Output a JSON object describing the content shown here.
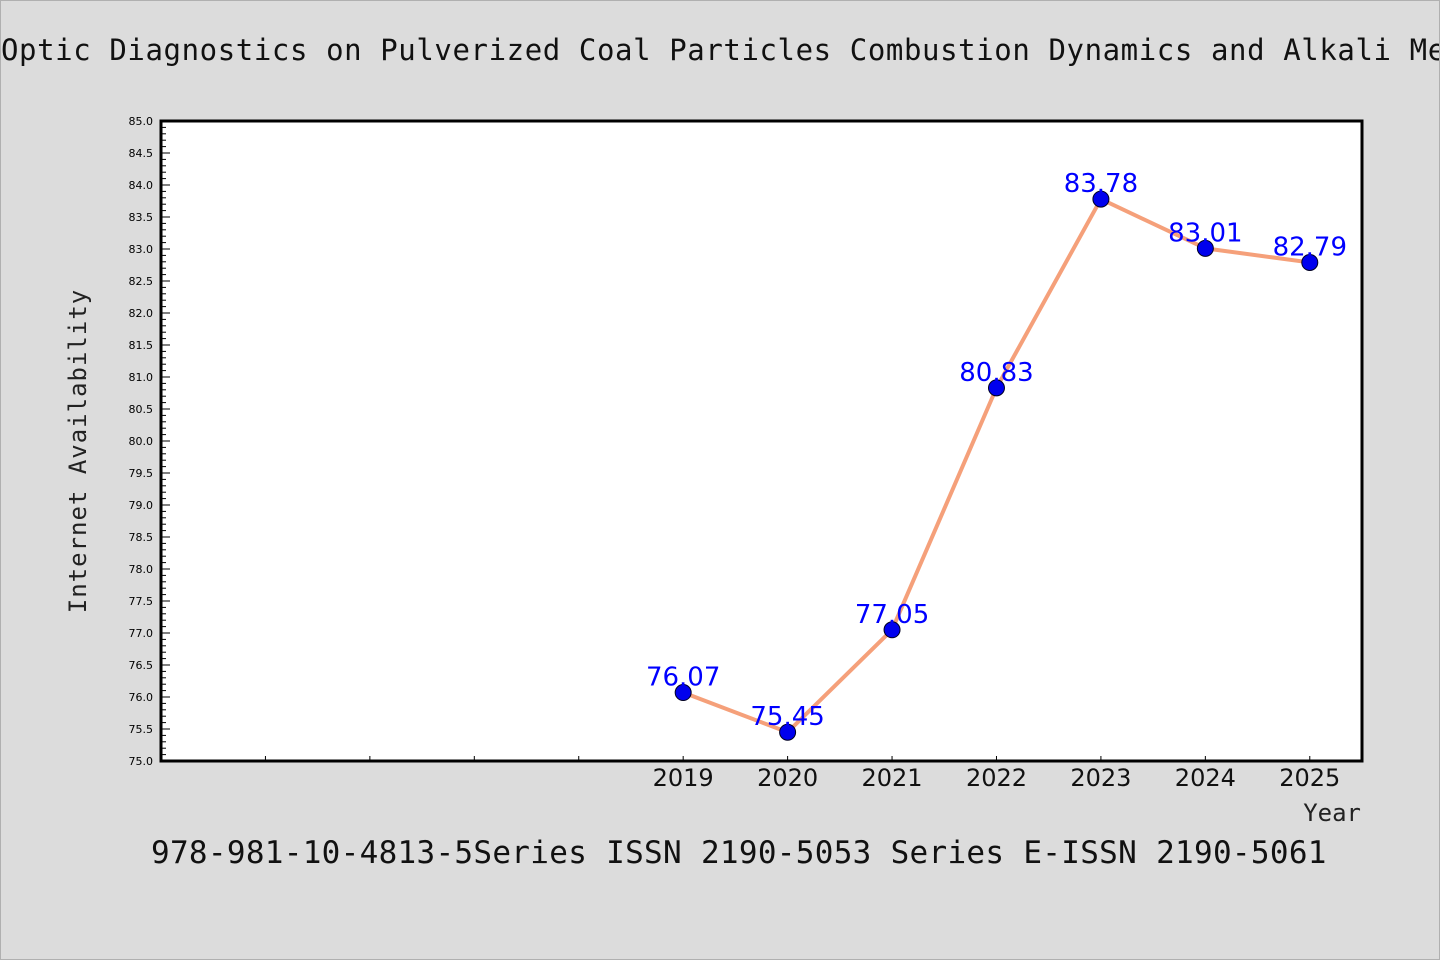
{
  "chart_data": {
    "type": "line",
    "title": "Optic Diagnostics on Pulverized Coal Particles Combustion Dynamics and Alkali Me",
    "xlabel": "Year",
    "ylabel": "Internet Availability",
    "x": [
      "2019",
      "2020",
      "2021",
      "2022",
      "2023",
      "2024",
      "2025"
    ],
    "series": [
      {
        "values": [
          76.07,
          75.45,
          77.05,
          80.83,
          83.78,
          83.01,
          82.79
        ]
      }
    ],
    "data_labels": [
      "76.07",
      "75.45",
      "77.05",
      "80.83",
      "83.78",
      "83.01",
      "82.79"
    ],
    "ylim": [
      75.0,
      85.0
    ],
    "xlim": [
      2014,
      2025.5
    ],
    "y_ticks": [
      "75.0",
      "75.5",
      "76.0",
      "76.5",
      "77.0",
      "77.5",
      "78.0",
      "78.5",
      "79.0",
      "79.5",
      "80.0",
      "80.5",
      "81.0",
      "81.5",
      "82.0",
      "82.5",
      "83.0",
      "83.5",
      "84.0",
      "84.5",
      "85.0"
    ],
    "grid": false,
    "legend": "none",
    "colors": {
      "line": "#f5a07a",
      "marker": "#0000ee",
      "data_label": "#0000ff"
    }
  },
  "footer_note": "978-981-10-4813-5Series ISSN 2190-5053 Series E-ISSN 2190-5061"
}
